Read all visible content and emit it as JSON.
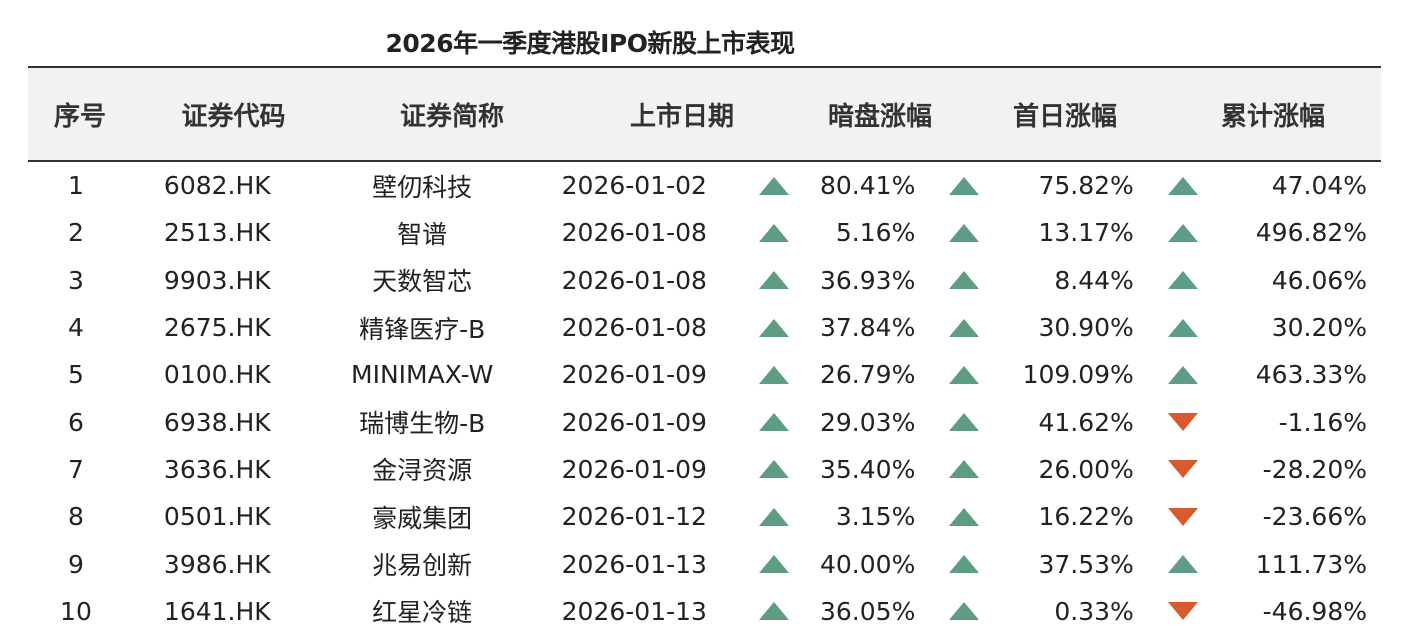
{
  "title": "2026年一季度港股IPO新股上市表现",
  "headers": [
    "序号",
    "证券代码",
    "证券简称",
    "上市日期",
    "暗盘涨幅",
    "首日涨幅",
    "累计涨幅"
  ],
  "colors": {
    "up": "#5e9c84",
    "down": "#d65a2e"
  },
  "rows": [
    {
      "no": "1",
      "code": "6082.HK",
      "name": "壁仞科技",
      "date": "2026-01-02",
      "dark": "80.41%",
      "dark_dir": "up",
      "first": "75.82%",
      "first_dir": "up",
      "cum": "47.04%",
      "cum_dir": "up"
    },
    {
      "no": "2",
      "code": "2513.HK",
      "name": "智谱",
      "date": "2026-01-08",
      "dark": "5.16%",
      "dark_dir": "up",
      "first": "13.17%",
      "first_dir": "up",
      "cum": "496.82%",
      "cum_dir": "up"
    },
    {
      "no": "3",
      "code": "9903.HK",
      "name": "天数智芯",
      "date": "2026-01-08",
      "dark": "36.93%",
      "dark_dir": "up",
      "first": "8.44%",
      "first_dir": "up",
      "cum": "46.06%",
      "cum_dir": "up"
    },
    {
      "no": "4",
      "code": "2675.HK",
      "name": "精锋医疗-B",
      "date": "2026-01-08",
      "dark": "37.84%",
      "dark_dir": "up",
      "first": "30.90%",
      "first_dir": "up",
      "cum": "30.20%",
      "cum_dir": "up"
    },
    {
      "no": "5",
      "code": "0100.HK",
      "name": "MINIMAX-W",
      "date": "2026-01-09",
      "dark": "26.79%",
      "dark_dir": "up",
      "first": "109.09%",
      "first_dir": "up",
      "cum": "463.33%",
      "cum_dir": "up"
    },
    {
      "no": "6",
      "code": "6938.HK",
      "name": "瑞博生物-B",
      "date": "2026-01-09",
      "dark": "29.03%",
      "dark_dir": "up",
      "first": "41.62%",
      "first_dir": "up",
      "cum": "-1.16%",
      "cum_dir": "down"
    },
    {
      "no": "7",
      "code": "3636.HK",
      "name": "金浔资源",
      "date": "2026-01-09",
      "dark": "35.40%",
      "dark_dir": "up",
      "first": "26.00%",
      "first_dir": "up",
      "cum": "-28.20%",
      "cum_dir": "down"
    },
    {
      "no": "8",
      "code": "0501.HK",
      "name": "豪威集团",
      "date": "2026-01-12",
      "dark": "3.15%",
      "dark_dir": "up",
      "first": "16.22%",
      "first_dir": "up",
      "cum": "-23.66%",
      "cum_dir": "down"
    },
    {
      "no": "9",
      "code": "3986.HK",
      "name": "兆易创新",
      "date": "2026-01-13",
      "dark": "40.00%",
      "dark_dir": "up",
      "first": "37.53%",
      "first_dir": "up",
      "cum": "111.73%",
      "cum_dir": "up"
    },
    {
      "no": "10",
      "code": "1641.HK",
      "name": "红星冷链",
      "date": "2026-01-13",
      "dark": "36.05%",
      "dark_dir": "up",
      "first": "0.33%",
      "first_dir": "up",
      "cum": "-46.98%",
      "cum_dir": "down"
    }
  ]
}
